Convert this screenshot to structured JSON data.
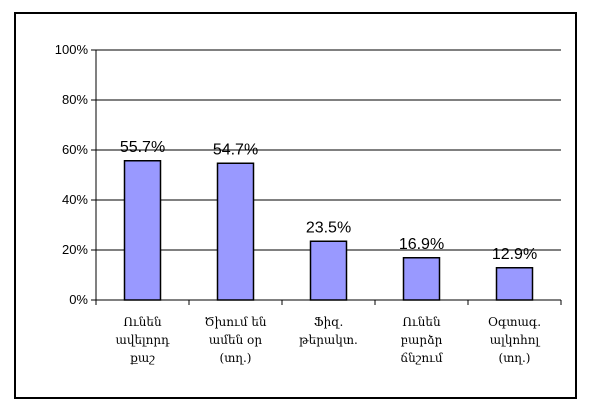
{
  "chart_data": {
    "type": "bar",
    "categories": [
      [
        "Ունեն",
        "ավելորդ",
        "քաշ"
      ],
      [
        "Ծխում են",
        "ամեն օր",
        "(տղ.)"
      ],
      [
        "Ֆիզ.",
        "թերակտ."
      ],
      [
        "Ունեն",
        "բարձր",
        "ճնշում"
      ],
      [
        "Օգտագ.",
        "ալկոհոլ",
        "(տղ.)"
      ]
    ],
    "values": [
      55.7,
      54.7,
      23.5,
      16.9,
      12.9
    ],
    "data_labels": [
      "55.7%",
      "54.7%",
      "23.5%",
      "16.9%",
      "12.9%"
    ],
    "ylim": [
      0,
      100
    ],
    "y_ticks": [
      0,
      20,
      40,
      60,
      80,
      100
    ],
    "y_tick_labels": [
      "0%",
      "20%",
      "40%",
      "60%",
      "80%",
      "100%"
    ],
    "grid": true,
    "legend": "none",
    "title": "",
    "xlabel": "",
    "ylabel": "",
    "colors": {
      "bar_fill": "#9999FF",
      "bar_stroke": "#000000",
      "grid": "#000000",
      "axis": "#000000"
    }
  }
}
